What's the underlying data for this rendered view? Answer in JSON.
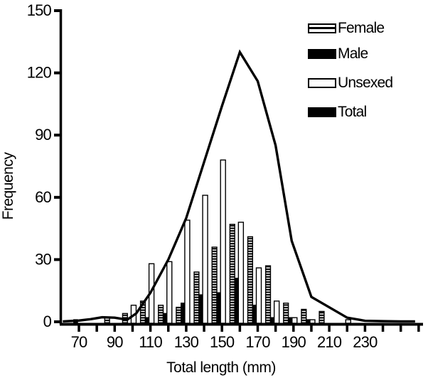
{
  "figure": {
    "xlabel": "Total length (mm)",
    "ylabel": "Frequency"
  },
  "legend": {
    "items": [
      {
        "label": "Female",
        "swatch": "horizontal-striped-bar"
      },
      {
        "label": "Male",
        "swatch": "solid-black-bar"
      },
      {
        "label": "Unsexed",
        "swatch": "open-white-bar"
      },
      {
        "label": "Total",
        "swatch": "black-line"
      }
    ]
  },
  "chart_data": {
    "type": "bar",
    "subtype": "grouped length-frequency histogram with total line overlay",
    "title": "",
    "xlabel": "Total length (mm)",
    "ylabel": "Frequency",
    "xlim": [
      60,
      262
    ],
    "ylim": [
      0,
      150
    ],
    "yticks": [
      0,
      30,
      60,
      90,
      120,
      150
    ],
    "xticks_labeled": [
      70,
      90,
      110,
      130,
      150,
      170,
      190,
      210,
      230
    ],
    "xticks_minor": [
      70,
      80,
      90,
      100,
      110,
      120,
      130,
      140,
      150,
      160,
      170,
      180,
      190,
      200,
      210,
      220,
      230,
      240,
      250,
      260
    ],
    "grid": false,
    "legend_position": "top-right-inside",
    "bin_width_mm": 10,
    "categories": [
      70,
      80,
      90,
      100,
      110,
      120,
      130,
      140,
      150,
      160,
      170,
      180,
      190,
      200,
      210,
      220,
      230,
      240,
      250
    ],
    "series": [
      {
        "name": "Female",
        "style": "horizontal-stripes",
        "values": [
          0,
          0,
          2,
          4,
          10,
          8,
          7,
          24,
          36,
          47,
          41,
          27,
          9,
          6,
          5,
          0,
          0,
          0,
          0
        ]
      },
      {
        "name": "Male",
        "style": "solid-black",
        "values": [
          1,
          0,
          0,
          0,
          2,
          4,
          9,
          13,
          14,
          21,
          8,
          2,
          2,
          1,
          0,
          0,
          0,
          0,
          0
        ]
      },
      {
        "name": "Unsexed",
        "style": "open-white",
        "values": [
          0,
          0,
          0,
          8,
          28,
          29,
          49,
          61,
          78,
          48,
          26,
          10,
          2,
          1,
          0,
          1,
          0,
          0,
          0
        ]
      },
      {
        "name": "Total",
        "style": "line",
        "values": [
          0.6,
          1,
          2,
          4,
          14,
          30,
          50,
          77,
          104,
          130,
          116,
          83,
          39,
          12,
          7,
          2,
          0.5,
          0,
          0
        ]
      }
    ],
    "total_line_points": [
      [
        61,
        0.2
      ],
      [
        70,
        0.6
      ],
      [
        76,
        1.2
      ],
      [
        83,
        2.2
      ],
      [
        90,
        2
      ],
      [
        97,
        1
      ],
      [
        102,
        4
      ],
      [
        110,
        14
      ],
      [
        120,
        30
      ],
      [
        130,
        50
      ],
      [
        140,
        77
      ],
      [
        150,
        104
      ],
      [
        160,
        130
      ],
      [
        170,
        116
      ],
      [
        180,
        85
      ],
      [
        189,
        39
      ],
      [
        200,
        12
      ],
      [
        210,
        7
      ],
      [
        220,
        2
      ],
      [
        230,
        0.5
      ],
      [
        240,
        0.3
      ],
      [
        250,
        0.2
      ],
      [
        258,
        0.2
      ]
    ],
    "colors": {
      "ink": "#000000",
      "background": "#ffffff"
    }
  }
}
